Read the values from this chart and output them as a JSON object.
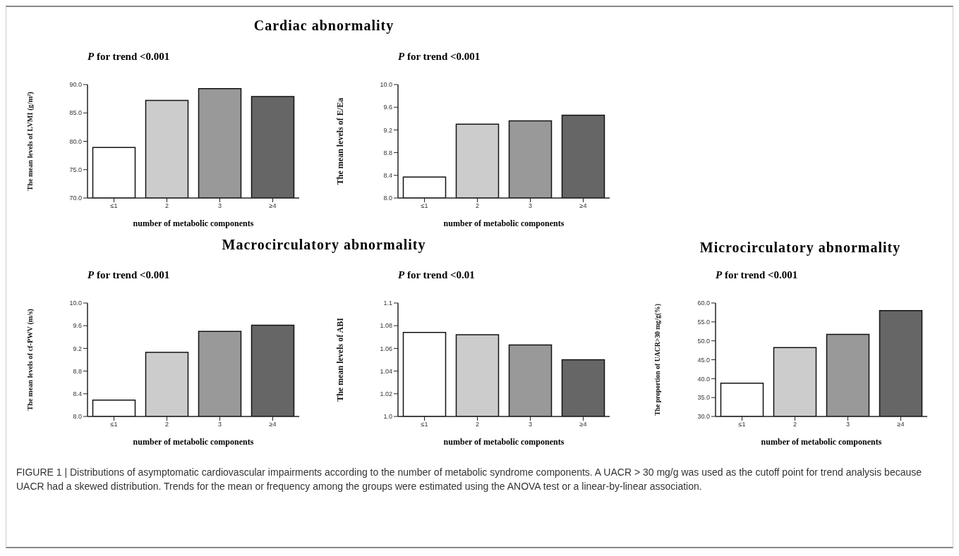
{
  "chart_data": [
    {
      "type": "bar",
      "title": "Cardiac abnormality",
      "subtitle": "P for trend <0.001",
      "xlabel": "number of metabolic components",
      "ylabel": "The mean levels of  LVMI (g/m²)",
      "categories": [
        "≤1",
        "2",
        "3",
        "≥4"
      ],
      "values": [
        78.9,
        87.2,
        89.3,
        87.9
      ],
      "colors": [
        "#ffffff",
        "#cccccc",
        "#999999",
        "#666666"
      ],
      "ylim": [
        70,
        90
      ],
      "yticks": [
        {
          "value": 70,
          "label": "70.0"
        },
        {
          "value": 75,
          "label": "75.0"
        },
        {
          "value": 80,
          "label": "80.0"
        },
        {
          "value": 85,
          "label": "85.0"
        },
        {
          "value": 90,
          "label": "90.0"
        }
      ]
    },
    {
      "type": "bar",
      "subtitle": "P for trend <0.001",
      "xlabel": "number of metabolic components",
      "ylabel": "The mean levels of  E/Ea",
      "categories": [
        "≤1",
        "2",
        "3",
        "≥4"
      ],
      "values": [
        8.37,
        9.3,
        9.36,
        9.46
      ],
      "colors": [
        "#ffffff",
        "#cccccc",
        "#999999",
        "#666666"
      ],
      "ylim": [
        8,
        10
      ],
      "yticks": [
        {
          "value": 8,
          "label": "8.0"
        },
        8.4,
        8.8,
        9.2,
        9.6,
        {
          "value": 10,
          "label": "10.0"
        }
      ]
    },
    {
      "type": "bar",
      "title": "Macrocirculatory abnormality",
      "subtitle": "P for trend <0.001",
      "xlabel": "number of metabolic components",
      "ylabel": "The mean levels of cf-PWV (m/s)",
      "categories": [
        "≤1",
        "2",
        "3",
        "≥4"
      ],
      "values": [
        8.29,
        9.13,
        9.5,
        9.61
      ],
      "colors": [
        "#ffffff",
        "#cccccc",
        "#999999",
        "#666666"
      ],
      "ylim": [
        8,
        10
      ],
      "yticks": [
        {
          "value": 8,
          "label": "8.0"
        },
        8.4,
        8.8,
        9.2,
        9.6,
        {
          "value": 10,
          "label": "10.0"
        }
      ]
    },
    {
      "type": "bar",
      "subtitle": "P for trend <0.01",
      "xlabel": "number of metabolic components",
      "ylabel": "The mean levels of ABI",
      "categories": [
        "≤1",
        "2",
        "3",
        "≥4"
      ],
      "values": [
        1.074,
        1.072,
        1.063,
        1.05
      ],
      "colors": [
        "#ffffff",
        "#cccccc",
        "#999999",
        "#666666"
      ],
      "ylim": [
        1,
        1.1
      ],
      "yticks": [
        {
          "value": 1,
          "label": "1.0"
        },
        1.02,
        1.04,
        1.06,
        1.08,
        1.1
      ]
    },
    {
      "type": "bar",
      "title": "Microcirculatory abnormality",
      "subtitle": "P for trend <0.001",
      "xlabel": "number of metabolic components",
      "ylabel": "The proportion of UACR>30 mg/g(%)",
      "categories": [
        "≤1",
        "2",
        "3",
        "≥4"
      ],
      "values": [
        38.8,
        48.2,
        51.7,
        58.0
      ],
      "colors": [
        "#ffffff",
        "#cccccc",
        "#999999",
        "#666666"
      ],
      "ylim": [
        30,
        60
      ],
      "yticks": [
        {
          "value": 30,
          "label": "30.0"
        },
        {
          "value": 35,
          "label": "35.0"
        },
        {
          "value": 40,
          "label": "40.0"
        },
        {
          "value": 45,
          "label": "45.0"
        },
        {
          "value": 50,
          "label": "50.0"
        },
        {
          "value": 55,
          "label": "55.0"
        },
        {
          "value": 60,
          "label": "60.0"
        }
      ],
      "annotations": [
        "FIGURE 1 | Distributions of asymptomatic cardiovascular impairments according to the number of metabolic syndrome components. A UACR > 30 mg/g was used as the cutoff point for trend analysis because UACR had a skewed distribution. Trends for the mean or frequency among the groups were estimated using the ANOVA test or a linear-by-linear association."
      ]
    }
  ]
}
